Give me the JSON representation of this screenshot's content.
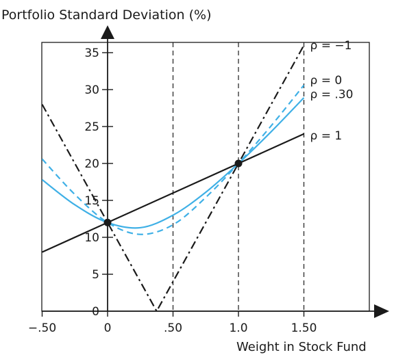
{
  "chart_data": {
    "type": "line",
    "title": "",
    "ylabel": "Portfolio Standard Deviation (%)",
    "xlabel": "Weight in Stock Fund",
    "xlim": [
      -0.5,
      2.0
    ],
    "ylim": [
      -0.5,
      37.5
    ],
    "x_ticks": [
      {
        "value": -0.5,
        "label": "−.50"
      },
      {
        "value": 0,
        "label": "0"
      },
      {
        "value": 0.5,
        "label": ".50"
      },
      {
        "value": 1.0,
        "label": "1.0"
      },
      {
        "value": 1.5,
        "label": "1.50"
      }
    ],
    "y_ticks": [
      {
        "value": 0,
        "label": "0"
      },
      {
        "value": 5,
        "label": "5"
      },
      {
        "value": 10,
        "label": "10"
      },
      {
        "value": 15,
        "label": "15"
      },
      {
        "value": 20,
        "label": "20"
      },
      {
        "value": 25,
        "label": "25"
      },
      {
        "value": 30,
        "label": "30"
      },
      {
        "value": 35,
        "label": "35"
      }
    ],
    "vertical_reference_lines": [
      0.5,
      1.0,
      1.5
    ],
    "highlighted_points": [
      {
        "x": 0,
        "y": 12
      },
      {
        "x": 1.0,
        "y": 20
      }
    ],
    "bond_sd": 12,
    "stock_sd": 20,
    "grid": false,
    "colors": {
      "black": "#1a1a1a",
      "blue": "#3fb0e6"
    },
    "series": [
      {
        "name": "ρ = −1",
        "rho": -1,
        "style": "dash-dot",
        "color": "#1a1a1a",
        "x": [
          -0.5,
          0,
          0.375,
          1.0,
          1.5
        ],
        "y": [
          28,
          12,
          0,
          20,
          36
        ]
      },
      {
        "name": "ρ = 0",
        "rho": 0,
        "style": "dashed",
        "color": "#3fb0e6",
        "x": [
          -0.5,
          -0.25,
          0,
          0.25,
          0.5,
          0.75,
          1.0,
          1.25,
          1.5
        ],
        "y": [
          20.6,
          15.8,
          12.0,
          10.4,
          11.7,
          15.4,
          20.0,
          25.1,
          30.6
        ]
      },
      {
        "name": "ρ = .30",
        "rho": 0.3,
        "style": "solid",
        "color": "#3fb0e6",
        "x": [
          -0.5,
          -0.25,
          0,
          0.25,
          0.5,
          0.75,
          1.0,
          1.25,
          1.5
        ],
        "y": [
          17.8,
          14.4,
          12.0,
          11.3,
          13.0,
          16.1,
          20.0,
          24.3,
          28.9
        ]
      },
      {
        "name": "ρ = 1",
        "rho": 1,
        "style": "solid",
        "color": "#1a1a1a",
        "x": [
          -0.5,
          1.5
        ],
        "y": [
          8,
          24
        ]
      }
    ]
  }
}
